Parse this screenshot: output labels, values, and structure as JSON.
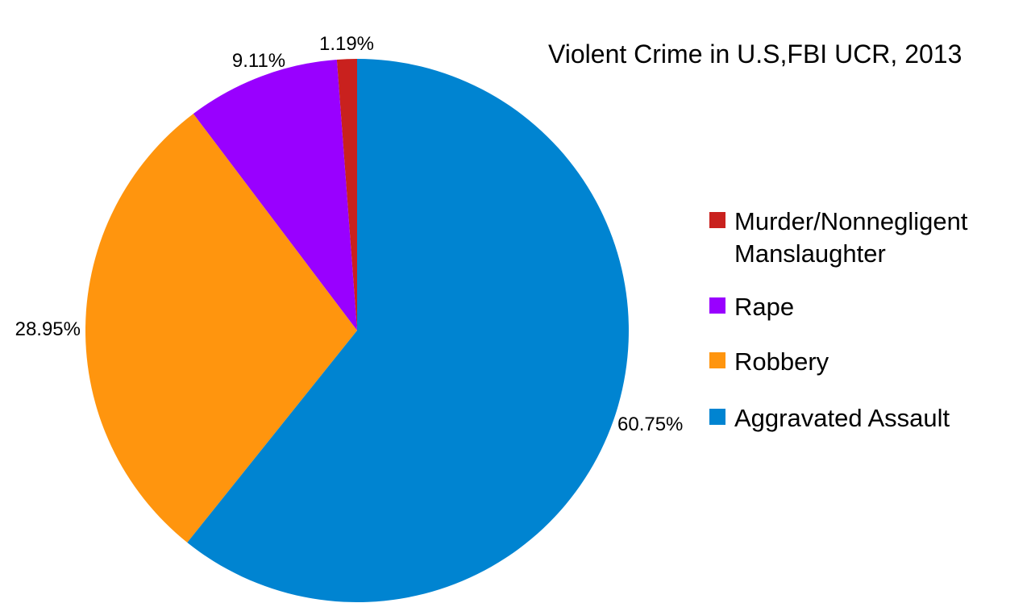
{
  "chart_data": {
    "type": "pie",
    "title": "Violent Crime in U.S,FBI UCR, 2013",
    "start_angle_deg": 0,
    "direction": "counterclockwise",
    "slices": [
      {
        "label": "Murder/Nonnegligent Manslaughter",
        "value": 1.19,
        "value_label": "1.19%",
        "color": "#c9211e"
      },
      {
        "label": "Rape",
        "value": 9.11,
        "value_label": "9.11%",
        "color": "#9900ff"
      },
      {
        "label": "Robbery",
        "value": 28.95,
        "value_label": "28.95%",
        "color": "#ff950e"
      },
      {
        "label": "Aggravated Assault",
        "value": 60.75,
        "value_label": "60.75%",
        "color": "#0084d1"
      }
    ],
    "legend_placement": "right"
  }
}
